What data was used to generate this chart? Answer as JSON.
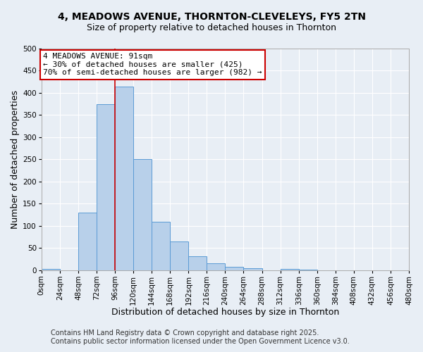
{
  "title": "4, MEADOWS AVENUE, THORNTON-CLEVELEYS, FY5 2TN",
  "subtitle": "Size of property relative to detached houses in Thornton",
  "bar_values": [
    3,
    0,
    130,
    375,
    415,
    250,
    110,
    65,
    32,
    15,
    8,
    5,
    0,
    3,
    2,
    0,
    0,
    0,
    0,
    0
  ],
  "bin_starts": [
    0,
    24,
    48,
    72,
    96,
    120,
    144,
    168,
    192,
    216,
    240,
    264,
    288,
    312,
    336,
    360,
    384,
    408,
    432,
    456
  ],
  "bin_labels": [
    "0sqm",
    "24sqm",
    "48sqm",
    "72sqm",
    "96sqm",
    "120sqm",
    "144sqm",
    "168sqm",
    "192sqm",
    "216sqm",
    "240sqm",
    "264sqm",
    "288sqm",
    "312sqm",
    "336sqm",
    "360sqm",
    "384sqm",
    "408sqm",
    "432sqm",
    "456sqm",
    "480sqm"
  ],
  "bar_color": "#b8d0ea",
  "bar_edge_color": "#5b9bd5",
  "ylim": [
    0,
    500
  ],
  "yticks": [
    0,
    50,
    100,
    150,
    200,
    250,
    300,
    350,
    400,
    450,
    500
  ],
  "xlabel": "Distribution of detached houses by size in Thornton",
  "ylabel": "Number of detached properties",
  "vline_x": 96,
  "vline_color": "#cc0000",
  "annotation_line1": "4 MEADOWS AVENUE: 91sqm",
  "annotation_line2": "← 30% of detached houses are smaller (425)",
  "annotation_line3": "70% of semi-detached houses are larger (982) →",
  "annotation_box_color": "#ffffff",
  "annotation_box_edge": "#cc0000",
  "footer_line1": "Contains HM Land Registry data © Crown copyright and database right 2025.",
  "footer_line2": "Contains public sector information licensed under the Open Government Licence v3.0.",
  "background_color": "#e8eef5",
  "grid_color": "#ffffff",
  "title_fontsize": 10,
  "subtitle_fontsize": 9,
  "axis_label_fontsize": 9,
  "tick_fontsize": 7.5,
  "footer_fontsize": 7,
  "annotation_fontsize": 8
}
